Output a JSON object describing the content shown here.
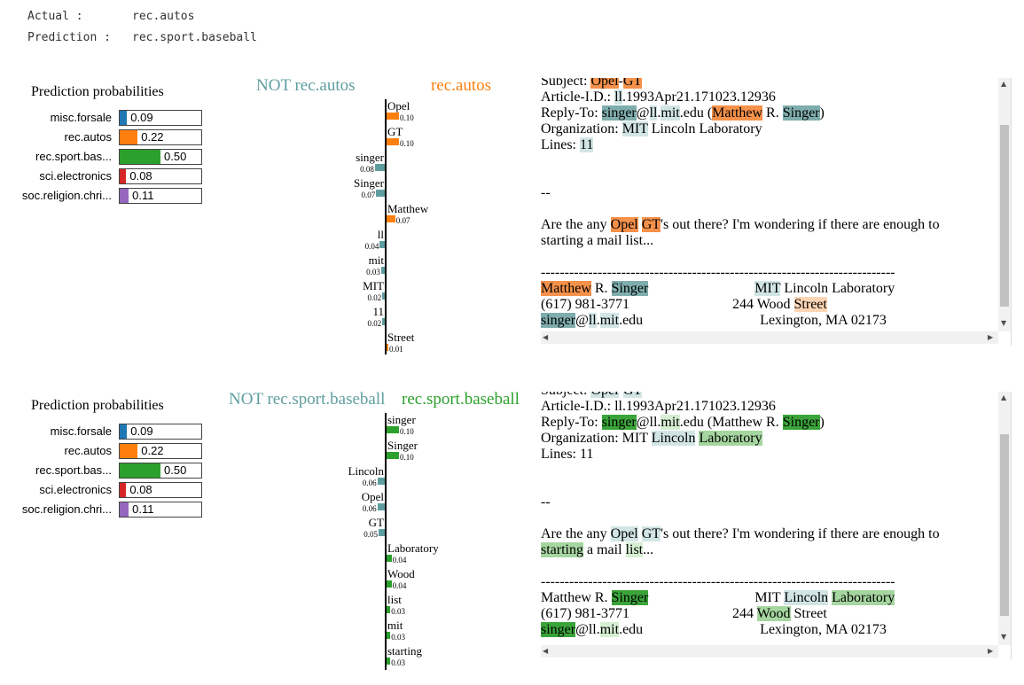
{
  "header": {
    "actual_key": "Actual :",
    "actual_value": "rec.autos",
    "prediction_key": "Prediction :",
    "prediction_value": "rec.sport.baseball"
  },
  "colors": {
    "blue": "#1f77b4",
    "orange": "#ff7f0e",
    "green": "#2ca02c",
    "red": "#d62728",
    "purple": "#9467bd",
    "not_color": "#5f9ea0",
    "orange_text": "#ff7f0e",
    "green_text": "#2ca02c"
  },
  "panels": [
    {
      "prob_title": "Prediction probabilities",
      "probs": [
        {
          "label": "misc.forsale",
          "value": 0.09,
          "display": "0.09",
          "color": "#1f77b4"
        },
        {
          "label": "rec.autos",
          "value": 0.22,
          "display": "0.22",
          "color": "#ff7f0e"
        },
        {
          "label": "rec.sport.bas...",
          "value": 0.5,
          "display": "0.50",
          "color": "#2ca02c"
        },
        {
          "label": "sci.electronics",
          "value": 0.08,
          "display": "0.08",
          "color": "#d62728"
        },
        {
          "label": "soc.religion.chri...",
          "value": 0.11,
          "display": "0.11",
          "color": "#9467bd"
        }
      ],
      "not_class": "NOT rec.autos",
      "class": "rec.autos",
      "features": [
        {
          "word": "Opel",
          "weight": 0.1,
          "display": "0.10",
          "side": "pos"
        },
        {
          "word": "GT",
          "weight": 0.1,
          "display": "0.10",
          "side": "pos"
        },
        {
          "word": "singer",
          "weight": 0.08,
          "display": "0.08",
          "side": "neg"
        },
        {
          "word": "Singer",
          "weight": 0.07,
          "display": "0.07",
          "side": "neg"
        },
        {
          "word": "Matthew",
          "weight": 0.07,
          "display": "0.07",
          "side": "pos"
        },
        {
          "word": "ll",
          "weight": 0.04,
          "display": "0.04",
          "side": "neg"
        },
        {
          "word": "mit",
          "weight": 0.03,
          "display": "0.03",
          "side": "neg"
        },
        {
          "word": "MIT",
          "weight": 0.02,
          "display": "0.02",
          "side": "neg"
        },
        {
          "word": "11",
          "weight": 0.02,
          "display": "0.02",
          "side": "neg"
        },
        {
          "word": "Street",
          "weight": 0.01,
          "display": "0.01",
          "side": "pos"
        }
      ],
      "pos_color": "#ff7f0e"
    },
    {
      "prob_title": "Prediction probabilities",
      "probs": [
        {
          "label": "misc.forsale",
          "value": 0.09,
          "display": "0.09",
          "color": "#1f77b4"
        },
        {
          "label": "rec.autos",
          "value": 0.22,
          "display": "0.22",
          "color": "#ff7f0e"
        },
        {
          "label": "rec.sport.bas...",
          "value": 0.5,
          "display": "0.50",
          "color": "#2ca02c"
        },
        {
          "label": "sci.electronics",
          "value": 0.08,
          "display": "0.08",
          "color": "#d62728"
        },
        {
          "label": "soc.religion.chri...",
          "value": 0.11,
          "display": "0.11",
          "color": "#9467bd"
        }
      ],
      "not_class": "NOT rec.sport.baseball",
      "class": "rec.sport.baseball",
      "features": [
        {
          "word": "singer",
          "weight": 0.1,
          "display": "0.10",
          "side": "pos"
        },
        {
          "word": "Singer",
          "weight": 0.1,
          "display": "0.10",
          "side": "pos"
        },
        {
          "word": "Lincoln",
          "weight": 0.06,
          "display": "0.06",
          "side": "neg"
        },
        {
          "word": "Opel",
          "weight": 0.06,
          "display": "0.06",
          "side": "neg"
        },
        {
          "word": "GT",
          "weight": 0.05,
          "display": "0.05",
          "side": "neg"
        },
        {
          "word": "Laboratory",
          "weight": 0.04,
          "display": "0.04",
          "side": "pos"
        },
        {
          "word": "Wood",
          "weight": 0.04,
          "display": "0.04",
          "side": "pos"
        },
        {
          "word": "list",
          "weight": 0.03,
          "display": "0.03",
          "side": "pos"
        },
        {
          "word": "mit",
          "weight": 0.03,
          "display": "0.03",
          "side": "pos"
        },
        {
          "word": "starting",
          "weight": 0.03,
          "display": "0.03",
          "side": "pos"
        }
      ],
      "pos_color": "#2ca02c"
    }
  ],
  "texts": [
    [
      [
        [
          "Subject: ",
          ""
        ],
        [
          "Opel",
          "o"
        ],
        [
          "-",
          ""
        ],
        [
          "GT",
          "o"
        ]
      ],
      [
        [
          "Article-I.D.: ",
          ""
        ],
        [
          "ll",
          "bl"
        ],
        [
          ".1993Apr21.171023.12936",
          ""
        ]
      ],
      [
        [
          "Reply-To: ",
          ""
        ],
        [
          "singer",
          "b"
        ],
        [
          "@",
          ""
        ],
        [
          "ll",
          "bl"
        ],
        [
          ".",
          ""
        ],
        [
          "mit",
          "bl"
        ],
        [
          ".edu (",
          ""
        ],
        [
          "Matthew",
          "o"
        ],
        [
          " R. ",
          ""
        ],
        [
          "Singer",
          "b"
        ],
        [
          ")",
          ""
        ]
      ],
      [
        [
          "Organization: ",
          ""
        ],
        [
          "MIT",
          "bl"
        ],
        [
          " Lincoln Laboratory",
          ""
        ]
      ],
      [
        [
          "Lines: ",
          ""
        ],
        [
          "11",
          "bl"
        ]
      ],
      [
        [
          "",
          ""
        ]
      ],
      [
        [
          "",
          ""
        ]
      ],
      [
        [
          "--",
          ""
        ]
      ],
      [
        [
          "",
          ""
        ]
      ],
      [
        [
          "Are the any ",
          ""
        ],
        [
          "Opel",
          "o"
        ],
        [
          " ",
          ""
        ],
        [
          "GT",
          "o"
        ],
        [
          "'s out there? I'm wondering if there are enough to",
          ""
        ]
      ],
      [
        [
          "starting a mail list...",
          ""
        ]
      ],
      [
        [
          "",
          ""
        ]
      ],
      [
        [
          "---------------------------------------------------------------------------",
          ""
        ]
      ],
      [
        [
          "Matthew",
          "o"
        ],
        [
          " R. ",
          ""
        ],
        [
          "Singer",
          "b"
        ],
        [
          "                              ",
          ""
        ],
        [
          "MIT",
          "bl"
        ],
        [
          " Lincoln Laboratory",
          ""
        ]
      ],
      [
        [
          "(617) 981-3771                             244 Wood ",
          ""
        ],
        [
          "Street",
          "ol"
        ]
      ],
      [
        [
          "singer",
          "b"
        ],
        [
          "@",
          ""
        ],
        [
          "ll",
          "bl"
        ],
        [
          ".",
          ""
        ],
        [
          "mit",
          "bl"
        ],
        [
          ".edu                                 Lexington, MA 02173",
          ""
        ]
      ]
    ],
    [
      [
        [
          "Subject: ",
          ""
        ],
        [
          "Opel",
          "bl"
        ],
        [
          "-",
          ""
        ],
        [
          "GT",
          "bl"
        ]
      ],
      [
        [
          "Article-I.D.: ll.1993Apr21.171023.12936",
          ""
        ]
      ],
      [
        [
          "Reply-To: ",
          ""
        ],
        [
          "singer",
          "g"
        ],
        [
          "@ll.",
          ""
        ],
        [
          "mit",
          "gl"
        ],
        [
          ".edu (Matthew R. ",
          ""
        ],
        [
          "Singer",
          "g"
        ],
        [
          ")",
          ""
        ]
      ],
      [
        [
          "Organization: MIT ",
          ""
        ],
        [
          "Lincoln",
          "bl"
        ],
        [
          " ",
          ""
        ],
        [
          "Laboratory",
          "gm"
        ]
      ],
      [
        [
          "Lines: 11",
          ""
        ]
      ],
      [
        [
          "",
          ""
        ]
      ],
      [
        [
          "",
          ""
        ]
      ],
      [
        [
          "--",
          ""
        ]
      ],
      [
        [
          "",
          ""
        ]
      ],
      [
        [
          "Are the any ",
          ""
        ],
        [
          "Opel",
          "bl"
        ],
        [
          " ",
          ""
        ],
        [
          "GT",
          "bl"
        ],
        [
          "'s out there? I'm wondering if there are enough to",
          ""
        ]
      ],
      [
        [
          "starting",
          "gm"
        ],
        [
          " a mail ",
          ""
        ],
        [
          "list",
          "gl"
        ],
        [
          "...",
          ""
        ]
      ],
      [
        [
          "",
          ""
        ]
      ],
      [
        [
          "---------------------------------------------------------------------------",
          ""
        ]
      ],
      [
        [
          "Matthew R. ",
          ""
        ],
        [
          "Singer",
          "g"
        ],
        [
          "                              MIT ",
          ""
        ],
        [
          "Lincoln",
          "bl"
        ],
        [
          " ",
          ""
        ],
        [
          "Laboratory",
          "gm"
        ]
      ],
      [
        [
          "(617) 981-3771                             244 ",
          ""
        ],
        [
          "Wood",
          "gm"
        ],
        [
          " Street",
          ""
        ]
      ],
      [
        [
          "singer",
          "g"
        ],
        [
          "@ll.",
          ""
        ],
        [
          "mit",
          "gl"
        ],
        [
          ".edu                                 Lexington, MA 02173",
          ""
        ]
      ]
    ]
  ]
}
